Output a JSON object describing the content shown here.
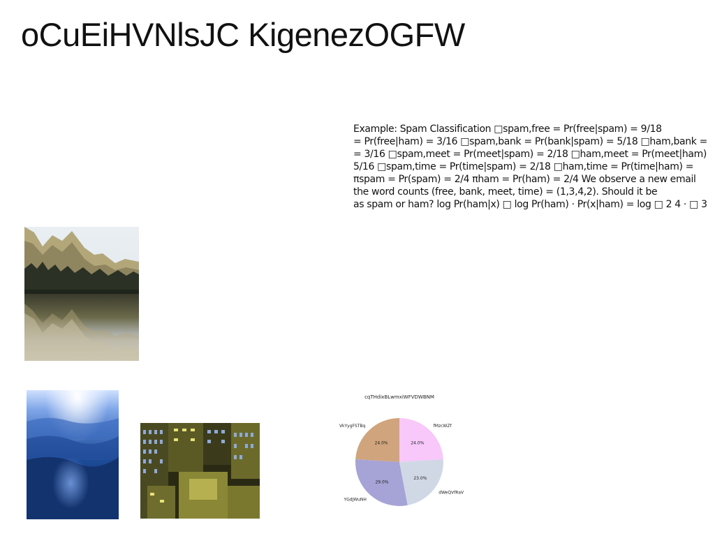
{
  "page": {
    "title": "oCuEiHVNlsJC KigenezOGFW"
  },
  "text_block": {
    "lines": [
      "Example: Spam Classification □spam,free = Pr(free|spam) = 9/18",
      "= Pr(free|ham) = 3/16 □spam,bank = Pr(bank|spam) = 5/18 □ham,bank =",
      "= 3/16 □spam,meet = Pr(meet|spam) = 2/18 □ham,meet = Pr(meet|ham)",
      "5/16 □spam,time = Pr(time|spam) = 2/18 □ham,time = Pr(time|ham) =",
      "πspam = Pr(spam) = 2/4 πham = Pr(ham) = 2/4 We observe a new email",
      "the word counts (free, bank, meet, time) = (1,3,4,2). Should it be",
      "as spam or ham? log Pr(ham|x) □ log Pr(ham) · Pr(x|ham) = log □ 2 4 · □ 3"
    ]
  },
  "images": {
    "mountain": "mountain-lake-photo",
    "forest": "blue-forest-photo",
    "city": "city-rooftops-photo"
  },
  "chart_data": {
    "type": "pie",
    "title": "cqTHdixBLwmxiWFVDWBNM",
    "slices": [
      {
        "label": "fMzcWZf",
        "value": 24.0,
        "pct_label": "24.0%",
        "color": "#f7c8f9"
      },
      {
        "label": "VkYygFSTBq",
        "value": 24.0,
        "pct_label": "24.0%",
        "color": "#d0a47c"
      },
      {
        "label": "YGdJWuNH",
        "value": 29.0,
        "pct_label": "29.0%",
        "color": "#a6a3d6"
      },
      {
        "label": "dWeQVfRaV",
        "value": 23.0,
        "pct_label": "23.0%",
        "color": "#d0d8e6"
      }
    ],
    "order": "counterclockwise from top"
  }
}
